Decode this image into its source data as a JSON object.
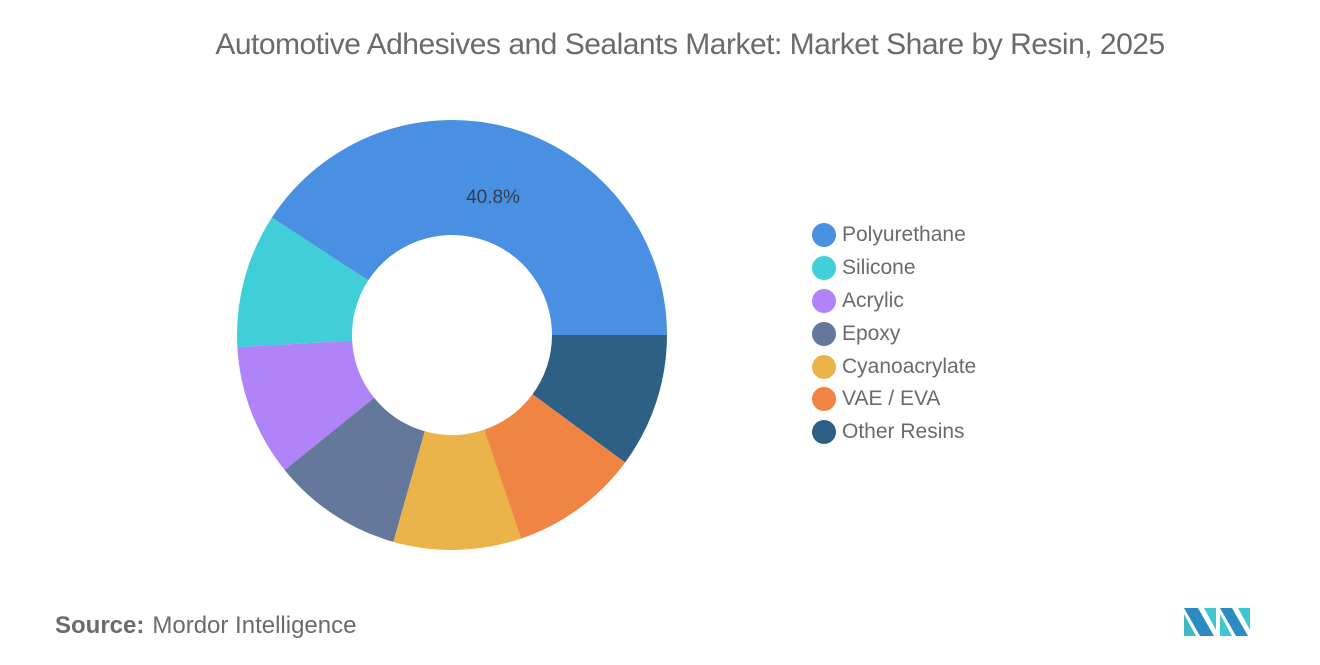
{
  "title": "Automotive Adhesives and Sealants Market: Market Share by Resin, 2025",
  "source": {
    "label": "Source:",
    "value": "Mordor Intelligence"
  },
  "logo": {
    "icon": "mordor-intelligence-logo-icon"
  },
  "chart_data": {
    "type": "pie",
    "subtype": "donut",
    "title": "Automotive Adhesives and Sealants Market: Market Share by Resin, 2025",
    "categories": [
      "Polyurethane",
      "Silicone",
      "Acrylic",
      "Epoxy",
      "Cyanoacrylate",
      "VAE / EVA",
      "Other Resins"
    ],
    "values": [
      40.8,
      10.1,
      9.9,
      9.8,
      9.6,
      9.7,
      10.1
    ],
    "colors": [
      "#4a90e2",
      "#40cfd8",
      "#b084f8",
      "#63789a",
      "#ebb44a",
      "#f08443",
      "#2e5f85"
    ],
    "data_labels": [
      {
        "category": "Polyurethane",
        "text": "40.8%"
      }
    ],
    "legend_position": "right",
    "unit": "%"
  },
  "legend": [
    {
      "label": "Polyurethane",
      "color": "#4a90e2"
    },
    {
      "label": "Silicone",
      "color": "#40cfd8"
    },
    {
      "label": "Acrylic",
      "color": "#b084f8"
    },
    {
      "label": "Epoxy",
      "color": "#63789a"
    },
    {
      "label": "Cyanoacrylate",
      "color": "#ebb44a"
    },
    {
      "label": "VAE / EVA",
      "color": "#f08443"
    },
    {
      "label": "Other Resins",
      "color": "#2e5f85"
    }
  ]
}
